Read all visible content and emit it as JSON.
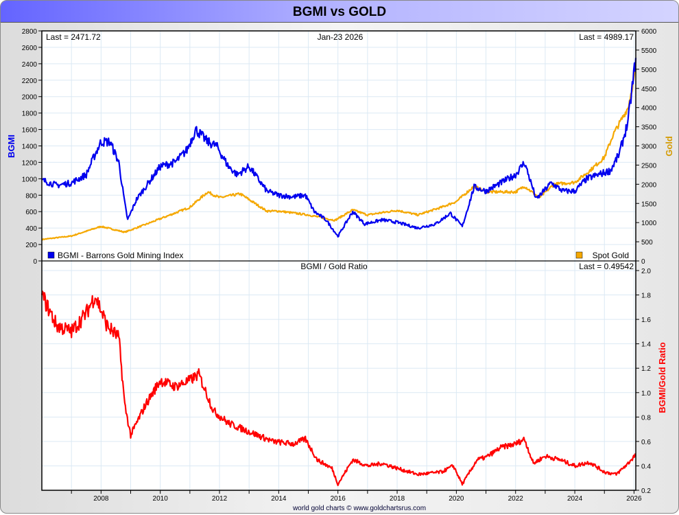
{
  "window": {
    "title": "BGMI vs GOLD",
    "footer": "world gold charts © www.goldchartsrus.com"
  },
  "chart_data": [
    {
      "type": "line",
      "title": "BGMI vs GOLD",
      "date_label": "Jan-23  2026",
      "left_last": "Last = 2471.72",
      "right_last": "Last = 4989.17",
      "ylabel_left": "BGMI",
      "ylabel_right": "Gold",
      "ylim_left": [
        0,
        2800
      ],
      "ylim_right": [
        0,
        6000
      ],
      "yticks_left": [
        "0",
        "200",
        "400",
        "600",
        "800",
        "1000",
        "1200",
        "1400",
        "1600",
        "1800",
        "2000",
        "2200",
        "2400",
        "2600",
        "2800"
      ],
      "yticks_right": [
        "0",
        "500",
        "1000",
        "1500",
        "2000",
        "2500",
        "3000",
        "3500",
        "4000",
        "4500",
        "5000",
        "5500",
        "6000"
      ],
      "xlim": [
        2006.0,
        2026.06
      ],
      "grid": true,
      "legend": [
        {
          "label": "BGMI - Barrons Gold Mining Index",
          "placement": "bottom-left"
        },
        {
          "label": "Spot Gold",
          "placement": "bottom-right"
        }
      ],
      "series": [
        {
          "name": "BGMI - Barrons Gold Mining Index",
          "axis": "left",
          "color": "#0000ee",
          "x": [
            2006.0,
            2006.5,
            2007.0,
            2007.5,
            2007.8,
            2008.0,
            2008.3,
            2008.6,
            2008.8,
            2008.9,
            2009.2,
            2009.6,
            2010.0,
            2010.5,
            2010.9,
            2011.2,
            2011.6,
            2011.9,
            2012.3,
            2012.6,
            2013.0,
            2013.3,
            2013.6,
            2014.0,
            2014.5,
            2014.9,
            2015.2,
            2015.6,
            2016.0,
            2016.5,
            2016.9,
            2017.5,
            2018.0,
            2018.7,
            2019.3,
            2019.8,
            2020.2,
            2020.6,
            2021.0,
            2021.5,
            2022.0,
            2022.3,
            2022.7,
            2023.2,
            2023.6,
            2024.0,
            2024.4,
            2024.8,
            2025.2,
            2025.5,
            2025.8,
            2026.06
          ],
          "y": [
            985,
            920,
            950,
            1050,
            1300,
            1450,
            1450,
            1200,
            700,
            500,
            750,
            950,
            1150,
            1200,
            1350,
            1600,
            1450,
            1400,
            1150,
            1050,
            1150,
            1000,
            850,
            800,
            780,
            800,
            600,
            500,
            300,
            600,
            450,
            500,
            470,
            400,
            450,
            580,
            420,
            900,
            850,
            950,
            1050,
            1200,
            750,
            950,
            850,
            850,
            1000,
            1050,
            1100,
            1300,
            1700,
            2471.72
          ]
        },
        {
          "name": "Spot Gold",
          "axis": "right",
          "color": "#f5a800",
          "x": [
            2006.0,
            2007.0,
            2008.0,
            2008.8,
            2009.5,
            2010.0,
            2010.5,
            2011.0,
            2011.6,
            2012.0,
            2012.7,
            2013.3,
            2013.6,
            2014.0,
            2015.0,
            2015.9,
            2016.5,
            2017.0,
            2018.0,
            2018.7,
            2019.5,
            2020.0,
            2020.6,
            2021.0,
            2022.0,
            2022.3,
            2022.8,
            2023.3,
            2024.0,
            2024.5,
            2025.0,
            2025.3,
            2025.8,
            2026.06
          ],
          "y": [
            560,
            650,
            900,
            750,
            950,
            1100,
            1250,
            1400,
            1800,
            1650,
            1750,
            1450,
            1300,
            1300,
            1200,
            1060,
            1330,
            1200,
            1320,
            1200,
            1400,
            1550,
            1950,
            1800,
            1800,
            1950,
            1650,
            2000,
            2050,
            2350,
            2700,
            3300,
            4000,
            4989.17
          ]
        }
      ]
    },
    {
      "type": "line",
      "title": "BGMI / Gold Ratio",
      "right_last": "Last = 0.49542",
      "ylabel_right": "BGMI/Gold Ratio",
      "ylim_right": [
        0.2,
        2.0
      ],
      "yticks_right": [
        "0.2",
        "0.4",
        "0.6",
        "0.8",
        "1.0",
        "1.2",
        "1.4",
        "1.6",
        "1.8",
        "2.0"
      ],
      "xticks": [
        "2008",
        "2010",
        "2012",
        "2014",
        "2016",
        "2018",
        "2020",
        "2022",
        "2024",
        "2026"
      ],
      "xlim": [
        2006.0,
        2026.06
      ],
      "grid": true,
      "series": [
        {
          "name": "BGMI/Gold Ratio",
          "color": "#ff0000",
          "x": [
            2006.0,
            2006.5,
            2007.0,
            2007.5,
            2007.8,
            2008.2,
            2008.6,
            2008.8,
            2009.0,
            2009.5,
            2010.0,
            2010.5,
            2011.0,
            2011.3,
            2011.8,
            2012.3,
            2012.8,
            2013.3,
            2013.8,
            2014.5,
            2014.9,
            2015.3,
            2015.8,
            2016.0,
            2016.5,
            2017.0,
            2017.5,
            2018.0,
            2018.7,
            2019.5,
            2019.9,
            2020.2,
            2020.7,
            2021.0,
            2021.5,
            2022.0,
            2022.3,
            2022.6,
            2023.0,
            2023.5,
            2024.0,
            2024.5,
            2025.0,
            2025.4,
            2025.8,
            2026.06
          ],
          "y": [
            1.8,
            1.55,
            1.5,
            1.65,
            1.8,
            1.55,
            1.45,
            0.9,
            0.65,
            0.9,
            1.1,
            1.05,
            1.1,
            1.15,
            0.85,
            0.75,
            0.7,
            0.65,
            0.6,
            0.58,
            0.62,
            0.45,
            0.38,
            0.25,
            0.45,
            0.4,
            0.42,
            0.38,
            0.33,
            0.35,
            0.4,
            0.25,
            0.45,
            0.47,
            0.55,
            0.58,
            0.62,
            0.42,
            0.48,
            0.45,
            0.4,
            0.43,
            0.35,
            0.33,
            0.42,
            0.49542
          ]
        }
      ]
    }
  ]
}
